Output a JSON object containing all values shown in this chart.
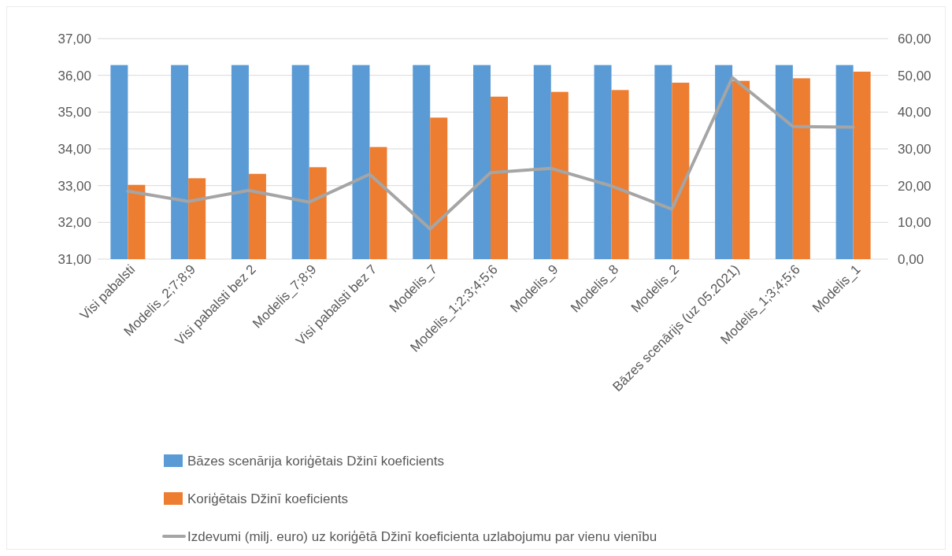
{
  "chart_data": {
    "type": "bar",
    "categories": [
      "Visi pabalsti",
      "Modelis_2;7;8;9",
      "Visi pabalsti bez 2",
      "Modelis_7;8;9",
      "Visi pabalsti bez 7",
      "Modelis_7",
      "Modelis_1;2;3;4;5;6",
      "Modelis_9",
      "Modelis_8",
      "Modelis_2",
      "Bāzes scenārijs (uz 05.2021)",
      "Modelis_1;3;4;5;6",
      "Modelis_1"
    ],
    "series": [
      {
        "name": "Bāzes scenārija koriģētais Džinī koeficients",
        "color": "#5b9bd5",
        "values": [
          36.28,
          36.28,
          36.28,
          36.28,
          36.28,
          36.28,
          36.28,
          36.28,
          36.28,
          36.28,
          36.28,
          36.28,
          36.28
        ]
      },
      {
        "name": "Koriģētais Džinī koeficients",
        "color": "#ed7d31",
        "values": [
          33.02,
          33.2,
          33.32,
          33.5,
          34.05,
          34.85,
          35.42,
          35.55,
          35.6,
          35.8,
          35.85,
          35.92,
          36.1
        ]
      },
      {
        "name": "Izdevumi (milj. euro) uz koriģētā Džinī koeficienta uzlabojumu par vienu vienību",
        "type": "line",
        "axis": "y2",
        "color": "#a5a5a5",
        "values": [
          18.5,
          15.7,
          18.7,
          15.5,
          23.1,
          8.2,
          23.5,
          24.7,
          19.9,
          13.6,
          49.4,
          36.1,
          35.9
        ]
      }
    ],
    "ylim": [
      31,
      37
    ],
    "yticks": [
      {
        "value": 31,
        "label": "31,00"
      },
      {
        "value": 32,
        "label": "32,00"
      },
      {
        "value": 33,
        "label": "33,00"
      },
      {
        "value": 34,
        "label": "34,00"
      },
      {
        "value": 35,
        "label": "35,00"
      },
      {
        "value": 36,
        "label": "36,00"
      },
      {
        "value": 37,
        "label": "37,00"
      }
    ],
    "y2lim": [
      0,
      60
    ],
    "y2ticks": [
      {
        "value": 0,
        "label": "0,00"
      },
      {
        "value": 10,
        "label": "10,00"
      },
      {
        "value": 20,
        "label": "20,00"
      },
      {
        "value": 30,
        "label": "30,00"
      },
      {
        "value": 40,
        "label": "40,00"
      },
      {
        "value": 50,
        "label": "50,00"
      },
      {
        "value": 60,
        "label": "60,00"
      }
    ],
    "grid": "y",
    "legend": "bottom"
  }
}
